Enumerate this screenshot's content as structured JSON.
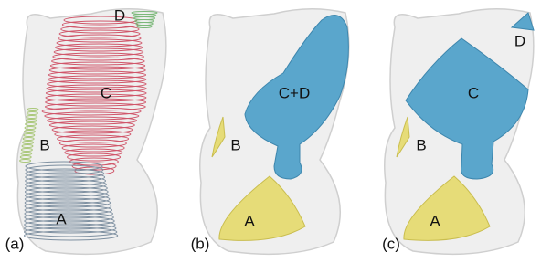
{
  "panels": [
    {
      "label": "(a)",
      "parts": [
        "D",
        "C",
        "B",
        "A"
      ]
    },
    {
      "label": "(b)",
      "parts": [
        "C+D",
        "B",
        "A"
      ]
    },
    {
      "label": "(c)",
      "parts": [
        "D",
        "C",
        "B",
        "A"
      ]
    }
  ]
}
